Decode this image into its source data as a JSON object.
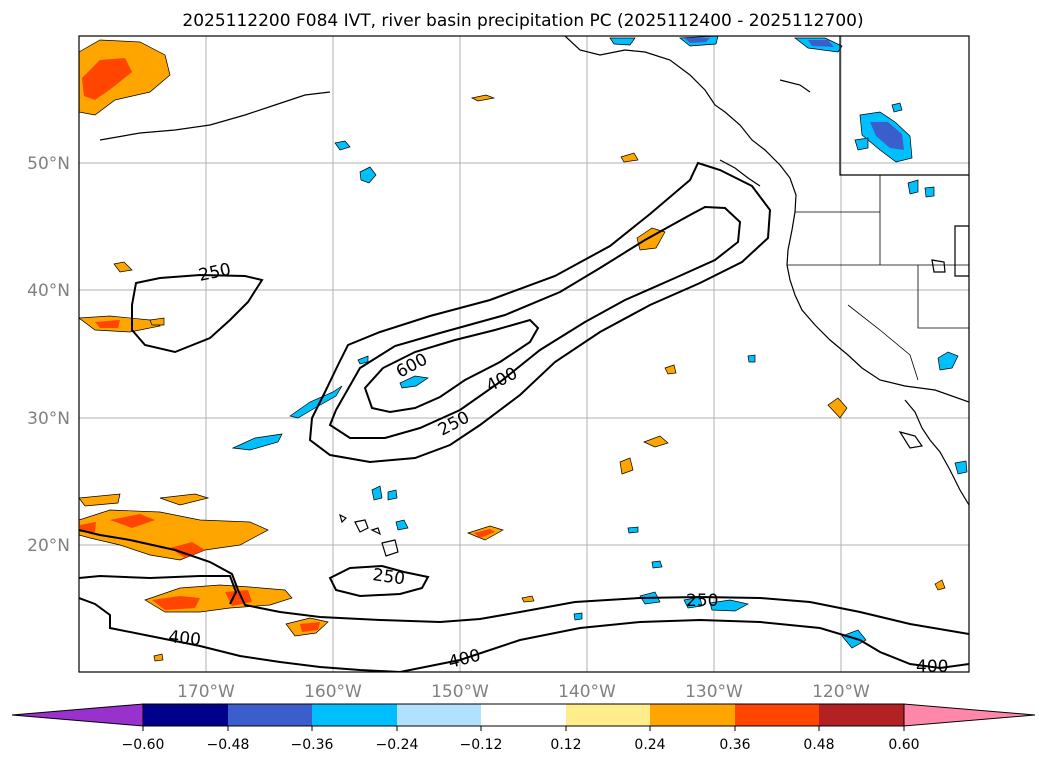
{
  "title": "2025112200 F084 IVT, river basin precipitation PC (2025112400 - 2025112700)",
  "latitude_labels": [
    "50°N",
    "40°N",
    "30°N",
    "20°N"
  ],
  "longitude_labels": [
    "170°W",
    "160°W",
    "150°W",
    "140°W",
    "130°W",
    "120°W"
  ],
  "contour_labels": [
    "250",
    "600",
    "400",
    "250",
    "250",
    "250",
    "400",
    "400",
    "400"
  ],
  "colorbar": {
    "tick_labels": [
      "−0.60",
      "−0.48",
      "−0.36",
      "−0.24",
      "−0.12",
      "0.12",
      "0.24",
      "0.36",
      "0.48",
      "0.60"
    ],
    "colors": [
      "#9932cc",
      "#00008b",
      "#3a5fcd",
      "#00bfff",
      "#b0e2ff",
      "#ffffff",
      "#ffec8b",
      "#ffa500",
      "#ff4500",
      "#b22222",
      "#ff88aa"
    ]
  },
  "colors": {
    "positive_pc": "#ffa500",
    "strong_positive_pc": "#ff4500",
    "negative_pc": "#00bfff",
    "strong_negative_pc": "#3a5fcd"
  }
}
